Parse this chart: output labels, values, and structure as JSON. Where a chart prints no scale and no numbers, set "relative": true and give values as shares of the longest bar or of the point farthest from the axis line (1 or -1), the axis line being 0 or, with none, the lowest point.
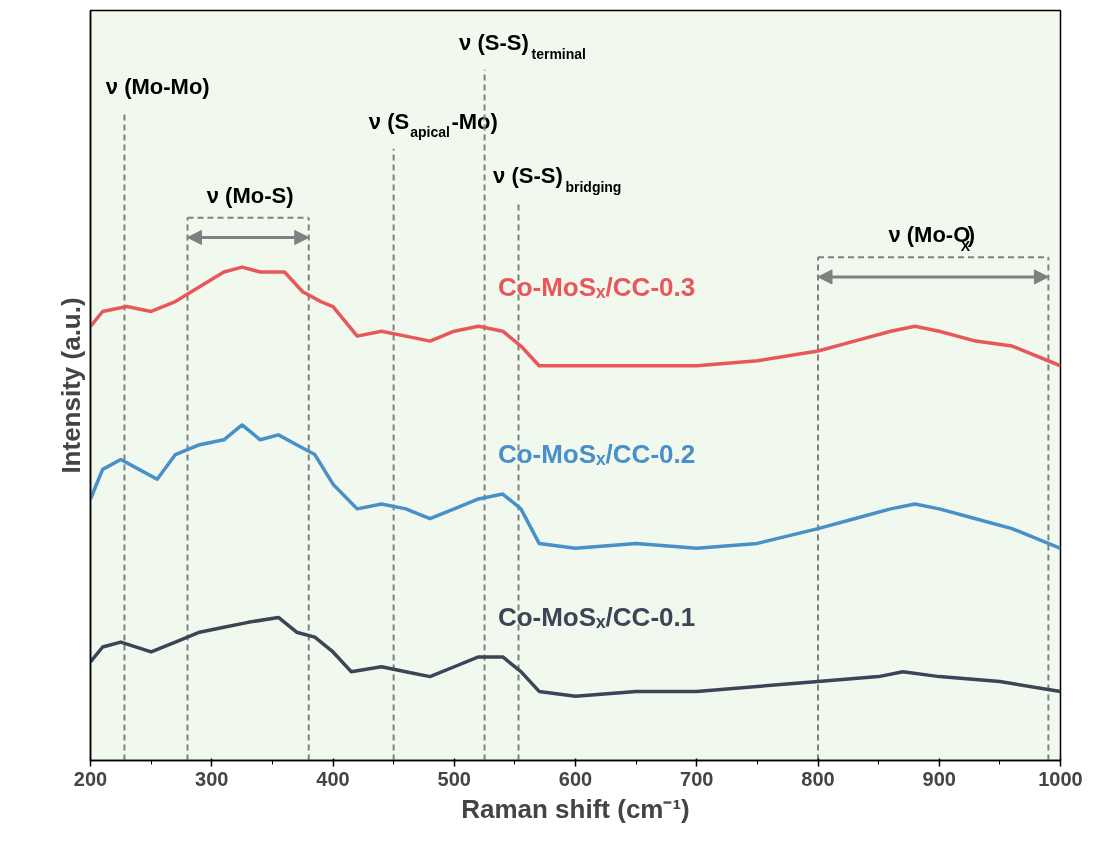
{
  "chart_data": {
    "type": "line",
    "relative": true,
    "xlabel": "Raman shift (cm⁻¹)",
    "ylabel": "Intensity (a.u.)",
    "xlim": [
      200,
      1000
    ],
    "xticks": [
      200,
      300,
      400,
      500,
      600,
      700,
      800,
      900,
      1000
    ],
    "tick_labels": "x",
    "grid": false,
    "series": [
      {
        "name": "Co-MoSₓ/CC-0.3",
        "color": "#e8585a",
        "x": [
          200,
          210,
          230,
          250,
          270,
          290,
          310,
          325,
          340,
          360,
          375,
          390,
          400,
          420,
          440,
          460,
          480,
          500,
          520,
          540,
          555,
          570,
          600,
          650,
          700,
          750,
          800,
          830,
          860,
          880,
          900,
          930,
          960,
          1000
        ],
        "values": [
          0.88,
          0.91,
          0.92,
          0.91,
          0.93,
          0.96,
          0.99,
          1.0,
          0.99,
          0.99,
          0.95,
          0.93,
          0.92,
          0.86,
          0.87,
          0.86,
          0.85,
          0.87,
          0.88,
          0.87,
          0.84,
          0.8,
          0.8,
          0.8,
          0.8,
          0.81,
          0.83,
          0.85,
          0.87,
          0.88,
          0.87,
          0.85,
          0.84,
          0.8
        ]
      },
      {
        "name": "Co-MoSₓ/CC-0.2",
        "color": "#4a90c8",
        "x": [
          200,
          210,
          225,
          240,
          255,
          270,
          290,
          310,
          325,
          340,
          355,
          370,
          385,
          400,
          420,
          440,
          460,
          480,
          500,
          520,
          540,
          555,
          570,
          600,
          650,
          700,
          750,
          800,
          830,
          860,
          880,
          900,
          930,
          960,
          1000
        ],
        "values": [
          0.53,
          0.59,
          0.61,
          0.59,
          0.57,
          0.62,
          0.64,
          0.65,
          0.68,
          0.65,
          0.66,
          0.64,
          0.62,
          0.56,
          0.51,
          0.52,
          0.51,
          0.49,
          0.51,
          0.53,
          0.54,
          0.51,
          0.44,
          0.43,
          0.44,
          0.43,
          0.44,
          0.47,
          0.49,
          0.51,
          0.52,
          0.51,
          0.49,
          0.47,
          0.43
        ]
      },
      {
        "name": "Co-MoSₓ/CC-0.1",
        "color": "#3a4656",
        "x": [
          200,
          210,
          225,
          250,
          270,
          290,
          310,
          330,
          355,
          370,
          385,
          400,
          415,
          440,
          460,
          480,
          500,
          520,
          540,
          555,
          570,
          600,
          650,
          700,
          750,
          800,
          850,
          870,
          900,
          950,
          1000
        ],
        "values": [
          0.2,
          0.23,
          0.24,
          0.22,
          0.24,
          0.26,
          0.27,
          0.28,
          0.29,
          0.26,
          0.25,
          0.22,
          0.18,
          0.19,
          0.18,
          0.17,
          0.19,
          0.21,
          0.21,
          0.18,
          0.14,
          0.13,
          0.14,
          0.14,
          0.15,
          0.16,
          0.17,
          0.18,
          0.17,
          0.16,
          0.14
        ]
      }
    ],
    "ref_lines": [
      {
        "axis": "x",
        "value": 228,
        "label": "ν (Mo-Mo)",
        "color": "#808080",
        "line_style": "dashed"
      },
      {
        "axis": "x",
        "value": 450,
        "label": "ν (S$_{apical}$-Mo)",
        "color": "#808080",
        "line_style": "dashed"
      },
      {
        "axis": "x",
        "value": 525,
        "label": "ν (S-S)$_{terminal}$",
        "color": "#808080",
        "line_style": "dashed"
      },
      {
        "axis": "x",
        "value": 553,
        "label": "ν (S-S)$_{bridging}$",
        "color": "#808080",
        "line_style": "dashed"
      },
      {
        "axis": "x",
        "value": 280,
        "color": "#808080",
        "line_style": "dashed"
      },
      {
        "axis": "x",
        "value": 380,
        "color": "#808080",
        "line_style": "dashed"
      },
      {
        "axis": "x",
        "value": 800,
        "color": "#808080",
        "line_style": "dashed"
      },
      {
        "axis": "x",
        "value": 990,
        "color": "#808080",
        "line_style": "dashed"
      }
    ],
    "annotations": [
      "ν (Mo-S)",
      "ν (Mo-O$_{X}$)"
    ]
  }
}
